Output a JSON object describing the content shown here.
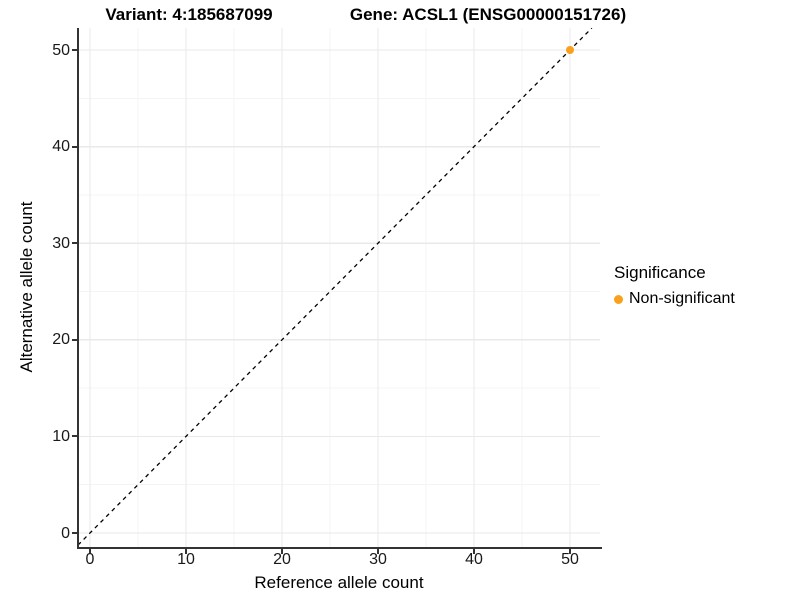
{
  "chart_data": {
    "type": "scatter",
    "title_left": "Variant: 4:185687099",
    "title_right": "Gene: ACSL1 (ENSG00000151726)",
    "xlabel": "Reference allele count",
    "ylabel": "Alternative allele count",
    "x_ticks": [
      0,
      10,
      20,
      30,
      40,
      50
    ],
    "y_ticks": [
      0,
      10,
      20,
      30,
      40,
      50
    ],
    "xlim": [
      -2.5,
      53
    ],
    "ylim": [
      -2.5,
      52.5
    ],
    "grid": "major and minor gridlines, light gray on white",
    "points": [
      {
        "x": 50,
        "y": 50,
        "series": "Non-significant"
      }
    ],
    "reference_line": {
      "slope": 1,
      "intercept": 0,
      "style": "dashed",
      "color": "#000000"
    },
    "legend": {
      "position": "right",
      "title": "Significance",
      "items": [
        {
          "label": "Non-significant",
          "color": "#F9A01D"
        }
      ]
    }
  },
  "colors": {
    "point": "#F9A01D",
    "grid_major": "#E9E9E9",
    "grid_minor": "#F4F4F4",
    "axis_line": "#333333",
    "tick_label": "#1a1a1a",
    "title": "#000000"
  }
}
